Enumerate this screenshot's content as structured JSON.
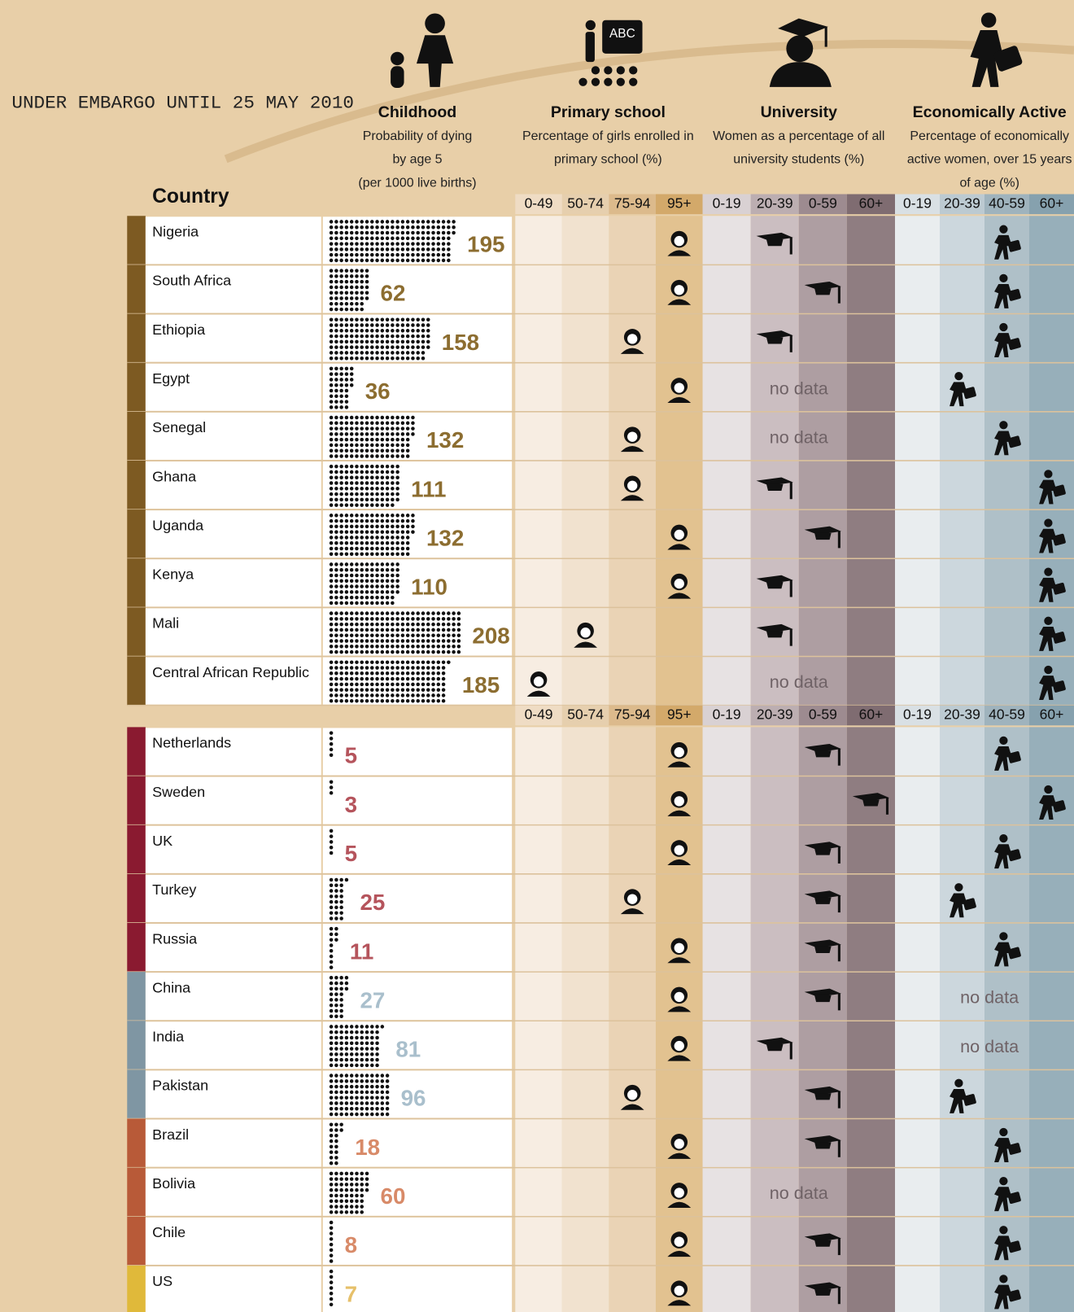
{
  "embargo": "UNDER EMBARGO UNTIL 25 MAY 2010",
  "country_header": "Country",
  "no_data_label": "no data",
  "sections": [
    {
      "title": "Childhood",
      "subtitle": [
        "Probability of dying",
        "by age 5",
        "(per 1000 live births)"
      ]
    },
    {
      "title": "Primary school",
      "icon_text": "ABC",
      "subtitle": [
        "Percentage of girls enrolled in",
        "primary school (%)"
      ],
      "bins": [
        "0-49",
        "50-74",
        "75-94",
        "95+"
      ]
    },
    {
      "title": "University",
      "subtitle": [
        "Women as a percentage of all",
        "university students (%)"
      ],
      "bins": [
        "0-19",
        "20-39",
        "0-59",
        "60+"
      ]
    },
    {
      "title": "Economically Active",
      "subtitle": [
        "Percentage of economically",
        "active women, over 15 years",
        "of age (%)"
      ],
      "bins": [
        "0-19",
        "20-39",
        "40-59",
        "60+"
      ]
    }
  ],
  "blocks": [
    {
      "groups": [
        {
          "color": "#7d5a22",
          "number_color": "#8c6d30",
          "rows": [
            {
              "country": "Nigeria",
              "child_mortality": 195,
              "primary": "95+",
              "university": "20-39",
              "economic": "40-59"
            },
            {
              "country": "South Africa",
              "child_mortality": 62,
              "primary": "95+",
              "university": "0-59",
              "economic": "40-59"
            },
            {
              "country": "Ethiopia",
              "child_mortality": 158,
              "primary": "75-94",
              "university": "20-39",
              "economic": "40-59"
            },
            {
              "country": "Egypt",
              "child_mortality": 36,
              "primary": "95+",
              "university": null,
              "economic": "20-39"
            },
            {
              "country": "Senegal",
              "child_mortality": 132,
              "primary": "75-94",
              "university": null,
              "economic": "40-59"
            },
            {
              "country": "Ghana",
              "child_mortality": 111,
              "primary": "75-94",
              "university": "20-39",
              "economic": "60+"
            },
            {
              "country": "Uganda",
              "child_mortality": 132,
              "primary": "95+",
              "university": "0-59",
              "economic": "60+"
            },
            {
              "country": "Kenya",
              "child_mortality": 110,
              "primary": "95+",
              "university": "20-39",
              "economic": "60+"
            },
            {
              "country": "Mali",
              "child_mortality": 208,
              "primary": "50-74",
              "university": "20-39",
              "economic": "60+"
            },
            {
              "country": "Central African Republic",
              "child_mortality": 185,
              "primary": "0-49",
              "university": null,
              "economic": "60+"
            }
          ]
        }
      ]
    },
    {
      "groups": [
        {
          "color": "#8a1a30",
          "number_color": "#b5545c",
          "rows": [
            {
              "country": "Netherlands",
              "child_mortality": 5,
              "primary": "95+",
              "university": "0-59",
              "economic": "40-59"
            },
            {
              "country": "Sweden",
              "child_mortality": 3,
              "primary": "95+",
              "university": "60+",
              "economic": "60+"
            },
            {
              "country": "UK",
              "child_mortality": 5,
              "primary": "95+",
              "university": "0-59",
              "economic": "40-59"
            },
            {
              "country": "Turkey",
              "child_mortality": 25,
              "primary": "75-94",
              "university": "0-59",
              "economic": "20-39"
            },
            {
              "country": "Russia",
              "child_mortality": 11,
              "primary": "95+",
              "university": "0-59",
              "economic": "40-59"
            }
          ]
        },
        {
          "color": "#7f96a3",
          "number_color": "#a9bfcc",
          "rows": [
            {
              "country": "China",
              "child_mortality": 27,
              "primary": "95+",
              "university": "0-59",
              "economic": null
            },
            {
              "country": "India",
              "child_mortality": 81,
              "primary": "95+",
              "university": "20-39",
              "economic": null
            },
            {
              "country": "Pakistan",
              "child_mortality": 96,
              "primary": "75-94",
              "university": "0-59",
              "economic": "20-39"
            }
          ]
        },
        {
          "color": "#b85a38",
          "number_color": "#d88a68",
          "rows": [
            {
              "country": "Brazil",
              "child_mortality": 18,
              "primary": "95+",
              "university": "0-59",
              "economic": "40-59"
            },
            {
              "country": "Bolivia",
              "child_mortality": 60,
              "primary": "95+",
              "university": null,
              "economic": "40-59"
            },
            {
              "country": "Chile",
              "child_mortality": 8,
              "primary": "95+",
              "university": "0-59",
              "economic": "40-59"
            }
          ]
        },
        {
          "color": "#e0b93a",
          "number_color": "#e6c06a",
          "rows": [
            {
              "country": "US",
              "child_mortality": 7,
              "primary": "95+",
              "university": "0-59",
              "economic": "40-59"
            }
          ]
        }
      ]
    }
  ]
}
